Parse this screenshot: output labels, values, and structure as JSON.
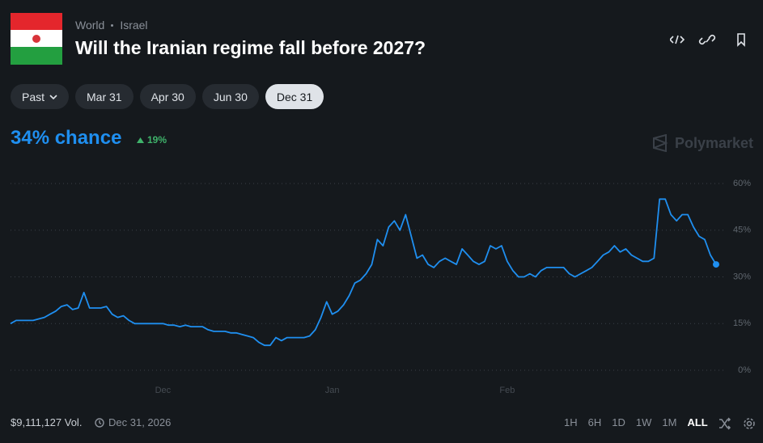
{
  "header": {
    "breadcrumb": [
      "World",
      "Israel"
    ],
    "title": "Will the Iranian regime fall before 2027?"
  },
  "tabs": [
    {
      "label": "Past",
      "selected": false
    },
    {
      "label": "Mar 31",
      "selected": false
    },
    {
      "label": "Apr 30",
      "selected": false
    },
    {
      "label": "Jun 30",
      "selected": false
    },
    {
      "label": "Dec 31",
      "selected": true
    }
  ],
  "summary": {
    "chance": "34% chance",
    "change": "19%",
    "brand": "Polymarket"
  },
  "chart_data": {
    "type": "line",
    "color": "#1f8ff0",
    "grid": true,
    "categories": [
      null,
      null,
      null,
      null,
      null,
      null,
      null,
      null,
      null,
      null,
      null,
      null,
      null,
      null,
      null,
      null,
      null,
      null,
      null,
      null,
      null,
      null,
      null,
      null,
      null,
      null,
      null,
      "Dec",
      null,
      null,
      null,
      null,
      null,
      null,
      null,
      null,
      null,
      null,
      null,
      null,
      null,
      null,
      null,
      null,
      null,
      null,
      null,
      null,
      null,
      null,
      null,
      null,
      null,
      null,
      null,
      null,
      null,
      "Jan",
      null,
      null,
      null,
      null,
      null,
      null,
      null,
      null,
      null,
      null,
      null,
      null,
      null,
      null,
      null,
      null,
      null,
      null,
      null,
      null,
      null,
      null,
      null,
      null,
      null,
      null,
      null,
      null,
      null,
      null,
      "Feb",
      null,
      null,
      null,
      null,
      null,
      null,
      null,
      null,
      null,
      null,
      null,
      null,
      null,
      null,
      null,
      null,
      null,
      null,
      null,
      null,
      null,
      null,
      null,
      null,
      null,
      null,
      null,
      null,
      null,
      null,
      null,
      null,
      null,
      null,
      null,
      null,
      null
    ],
    "values": [
      15,
      16,
      16,
      16,
      16,
      16.5,
      17,
      18,
      19,
      20.5,
      21,
      19.5,
      20,
      25,
      20,
      20,
      20,
      20.5,
      18,
      17,
      17.5,
      16,
      15,
      15,
      15,
      15,
      15,
      15,
      14.5,
      14.5,
      14,
      14.5,
      14,
      14,
      14,
      13,
      12.5,
      12.5,
      12.5,
      12,
      12,
      11.5,
      11,
      10.5,
      9,
      8,
      8,
      10.5,
      9.5,
      10.5,
      10.5,
      10.5,
      10.5,
      11,
      13,
      17,
      22,
      18,
      19,
      21,
      24,
      28,
      29,
      31,
      34,
      42,
      40,
      46,
      48,
      45,
      50,
      43,
      36,
      37,
      34,
      33,
      35,
      36,
      35,
      34,
      39,
      37,
      35,
      34,
      35,
      40,
      39,
      40,
      35,
      32,
      30,
      30,
      31,
      30,
      32,
      33,
      33,
      33,
      33,
      31,
      30,
      31,
      32,
      33,
      35,
      37,
      38,
      40,
      38,
      39,
      37,
      36,
      35,
      35,
      36,
      55,
      55,
      50,
      48,
      50,
      50,
      46,
      43,
      42,
      37,
      34
    ],
    "ylim": [
      0,
      60
    ],
    "yticks": [
      {
        "value": 0,
        "label": "0%"
      },
      {
        "value": 15,
        "label": "15%"
      },
      {
        "value": 30,
        "label": "30%"
      },
      {
        "value": 45,
        "label": "45%"
      },
      {
        "value": 60,
        "label": "60%"
      }
    ]
  },
  "footer": {
    "volume": "$9,111,127 Vol.",
    "end_date": "Dec 31, 2026",
    "ranges": [
      {
        "label": "1H",
        "selected": false
      },
      {
        "label": "6H",
        "selected": false
      },
      {
        "label": "1D",
        "selected": false
      },
      {
        "label": "1W",
        "selected": false
      },
      {
        "label": "1M",
        "selected": false
      },
      {
        "label": "ALL",
        "selected": true
      }
    ]
  }
}
